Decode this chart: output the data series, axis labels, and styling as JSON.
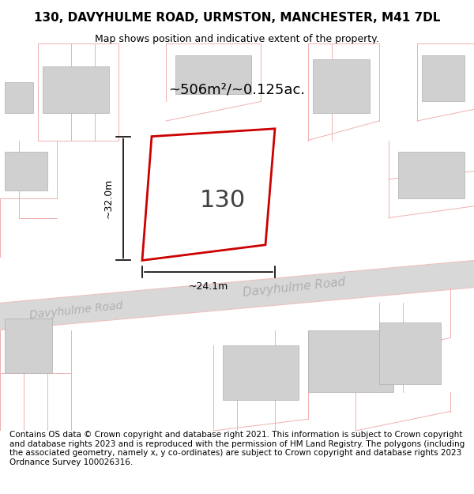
{
  "title": "130, DAVYHULME ROAD, URMSTON, MANCHESTER, M41 7DL",
  "subtitle": "Map shows position and indicative extent of the property.",
  "footer": "Contains OS data © Crown copyright and database right 2021. This information is subject to Crown copyright and database rights 2023 and is reproduced with the permission of HM Land Registry. The polygons (including the associated geometry, namely x, y co-ordinates) are subject to Crown copyright and database rights 2023 Ordnance Survey 100026316.",
  "area_label": "~506m²/~0.125ac.",
  "number_label": "130",
  "dim_width": "~24.1m",
  "dim_height": "~32.0m",
  "road_label_1": "Davyhulme Road",
  "road_label_2": "Davyhulme Road",
  "bg_color": "#ffffff",
  "map_bg": "#f5f5f5",
  "road_color": "#e8e8e8",
  "plot_border_color": "#cc0000",
  "building_fill": "#e0e0e0",
  "road_line_color": "#f0c0c0",
  "title_fontsize": 11,
  "subtitle_fontsize": 9,
  "footer_fontsize": 7.5
}
